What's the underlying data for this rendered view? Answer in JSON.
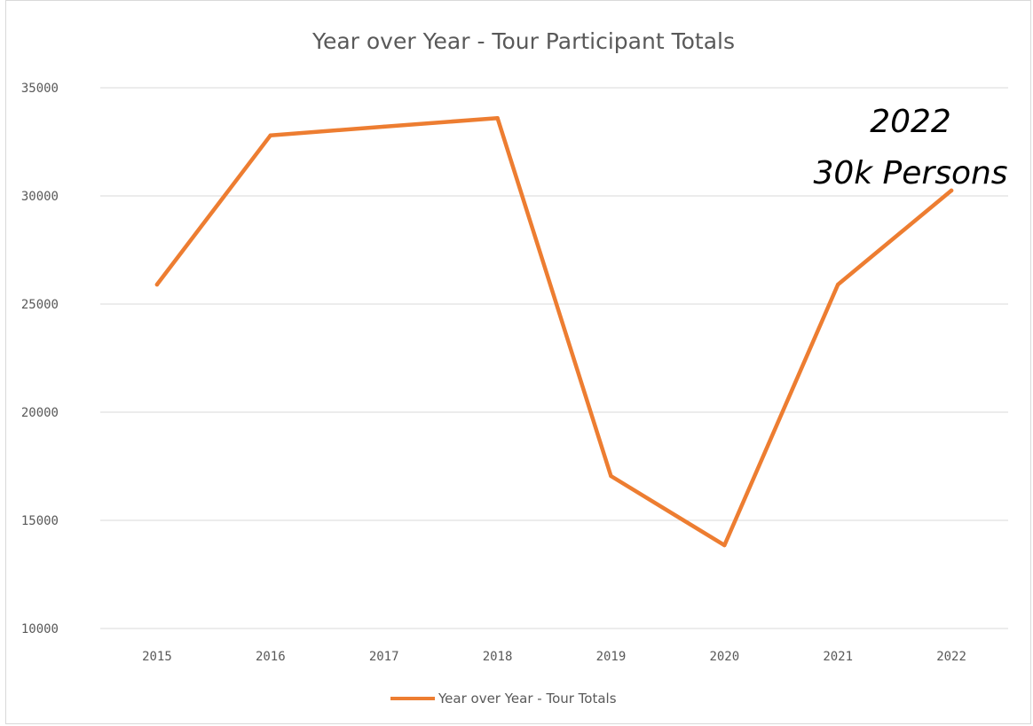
{
  "chart_data": {
    "type": "line",
    "title": "Year over Year - Tour Participant Totals",
    "xlabel": "",
    "ylabel": "",
    "categories": [
      "2015",
      "2016",
      "2017",
      "2018",
      "2019",
      "2020",
      "2021",
      "2022"
    ],
    "series": [
      {
        "name": "Year over Year - Tour Totals",
        "values": [
          25900,
          32800,
          33200,
          33600,
          17050,
          13850,
          25900,
          30250
        ],
        "color": "#ed7d31"
      }
    ],
    "ylim": [
      10000,
      35000
    ],
    "yticks": [
      "10000",
      "15000",
      "20000",
      "25000",
      "30000",
      "35000"
    ],
    "grid": true,
    "legend": "bottom",
    "annotation": {
      "line1": "2022",
      "line2": "30k Persons"
    }
  }
}
